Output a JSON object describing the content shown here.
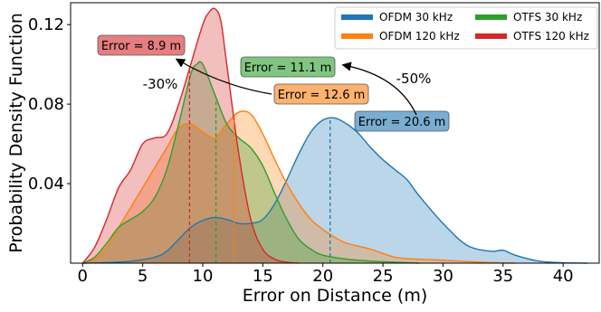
{
  "chart_data": {
    "type": "area",
    "title": "",
    "xlabel": "Error on Distance (m)",
    "ylabel": "Probability Density Function",
    "xlim": [
      -1,
      43
    ],
    "ylim": [
      0,
      0.131
    ],
    "xticks": [
      "0",
      "5",
      "10",
      "15",
      "20",
      "25",
      "30",
      "35",
      "40"
    ],
    "xtick_values": [
      0,
      5,
      10,
      15,
      20,
      25,
      30,
      35,
      40
    ],
    "yticks": [
      "0.04",
      "0.08",
      "0.12"
    ],
    "ytick_values": [
      0.04,
      0.08,
      0.12
    ],
    "grid": false,
    "legend_position": "top-right",
    "series": [
      {
        "name": "OFDM 30 kHz",
        "color": "#1f77b4",
        "fill": "#1f77b4",
        "median": 20.6,
        "x": [
          0,
          2,
          4,
          6,
          7,
          8,
          9,
          10,
          11,
          12,
          13,
          14,
          15,
          16,
          17,
          18,
          19,
          20,
          21,
          22,
          23,
          24,
          25,
          26,
          27,
          28,
          30,
          32,
          34,
          35,
          36,
          38,
          40,
          42
        ],
        "y": [
          0,
          0.0003,
          0.001,
          0.003,
          0.006,
          0.012,
          0.018,
          0.0215,
          0.023,
          0.022,
          0.02,
          0.02,
          0.022,
          0.03,
          0.042,
          0.055,
          0.066,
          0.072,
          0.073,
          0.07,
          0.065,
          0.058,
          0.052,
          0.047,
          0.042,
          0.034,
          0.02,
          0.009,
          0.006,
          0.0065,
          0.004,
          0.001,
          0.0002,
          0
        ]
      },
      {
        "name": "OFDM 120 kHz",
        "color": "#ff7f0e",
        "fill": "#ff7f0e",
        "median": 12.6,
        "x": [
          0,
          1,
          2,
          3,
          4,
          5,
          6,
          7,
          8,
          9,
          10,
          11,
          12,
          13,
          14,
          15,
          16,
          17,
          18,
          19,
          20,
          21,
          22,
          24,
          26,
          28,
          30,
          32,
          34,
          36
        ],
        "y": [
          0,
          0.002,
          0.008,
          0.018,
          0.028,
          0.038,
          0.048,
          0.058,
          0.068,
          0.07,
          0.066,
          0.063,
          0.07,
          0.076,
          0.075,
          0.065,
          0.052,
          0.04,
          0.03,
          0.022,
          0.017,
          0.013,
          0.01,
          0.007,
          0.003,
          0.002,
          0.0015,
          0.0008,
          0.0003,
          0
        ]
      },
      {
        "name": "OTFS 30 kHz",
        "color": "#2ca02c",
        "fill": "#2ca02c",
        "median": 11.1,
        "x": [
          0,
          1,
          2,
          3,
          4,
          5,
          6,
          7,
          8,
          9,
          9.5,
          10,
          11,
          12,
          13,
          14,
          15,
          16,
          17,
          18,
          19,
          20,
          22,
          24,
          26,
          28
        ],
        "y": [
          0,
          0.003,
          0.01,
          0.018,
          0.022,
          0.026,
          0.033,
          0.047,
          0.07,
          0.095,
          0.1,
          0.1,
          0.085,
          0.07,
          0.063,
          0.058,
          0.049,
          0.035,
          0.022,
          0.012,
          0.007,
          0.004,
          0.002,
          0.001,
          0.0005,
          0
        ]
      },
      {
        "name": "OTFS 120 kHz",
        "color": "#d62728",
        "fill": "#d62728",
        "median": 8.9,
        "x": [
          0,
          1,
          2,
          3,
          4,
          5,
          6,
          7,
          8,
          9,
          10,
          10.5,
          11,
          11.5,
          12,
          13,
          14,
          15,
          16,
          17,
          18
        ],
        "y": [
          0,
          0.008,
          0.022,
          0.038,
          0.047,
          0.06,
          0.063,
          0.065,
          0.08,
          0.1,
          0.12,
          0.126,
          0.128,
          0.122,
          0.1,
          0.055,
          0.022,
          0.007,
          0.002,
          0.0005,
          0
        ]
      }
    ],
    "annotations": [
      {
        "text": "Error = 8.9 m",
        "series": "OTFS 120 kHz"
      },
      {
        "text": "Error = 11.1 m",
        "series": "OTFS 30 kHz"
      },
      {
        "text": "Error = 12.6 m",
        "series": "OFDM 120 kHz"
      },
      {
        "text": "Error = 20.6 m",
        "series": "OFDM 30 kHz"
      },
      {
        "text": "-30%"
      },
      {
        "text": "-50%"
      }
    ]
  }
}
